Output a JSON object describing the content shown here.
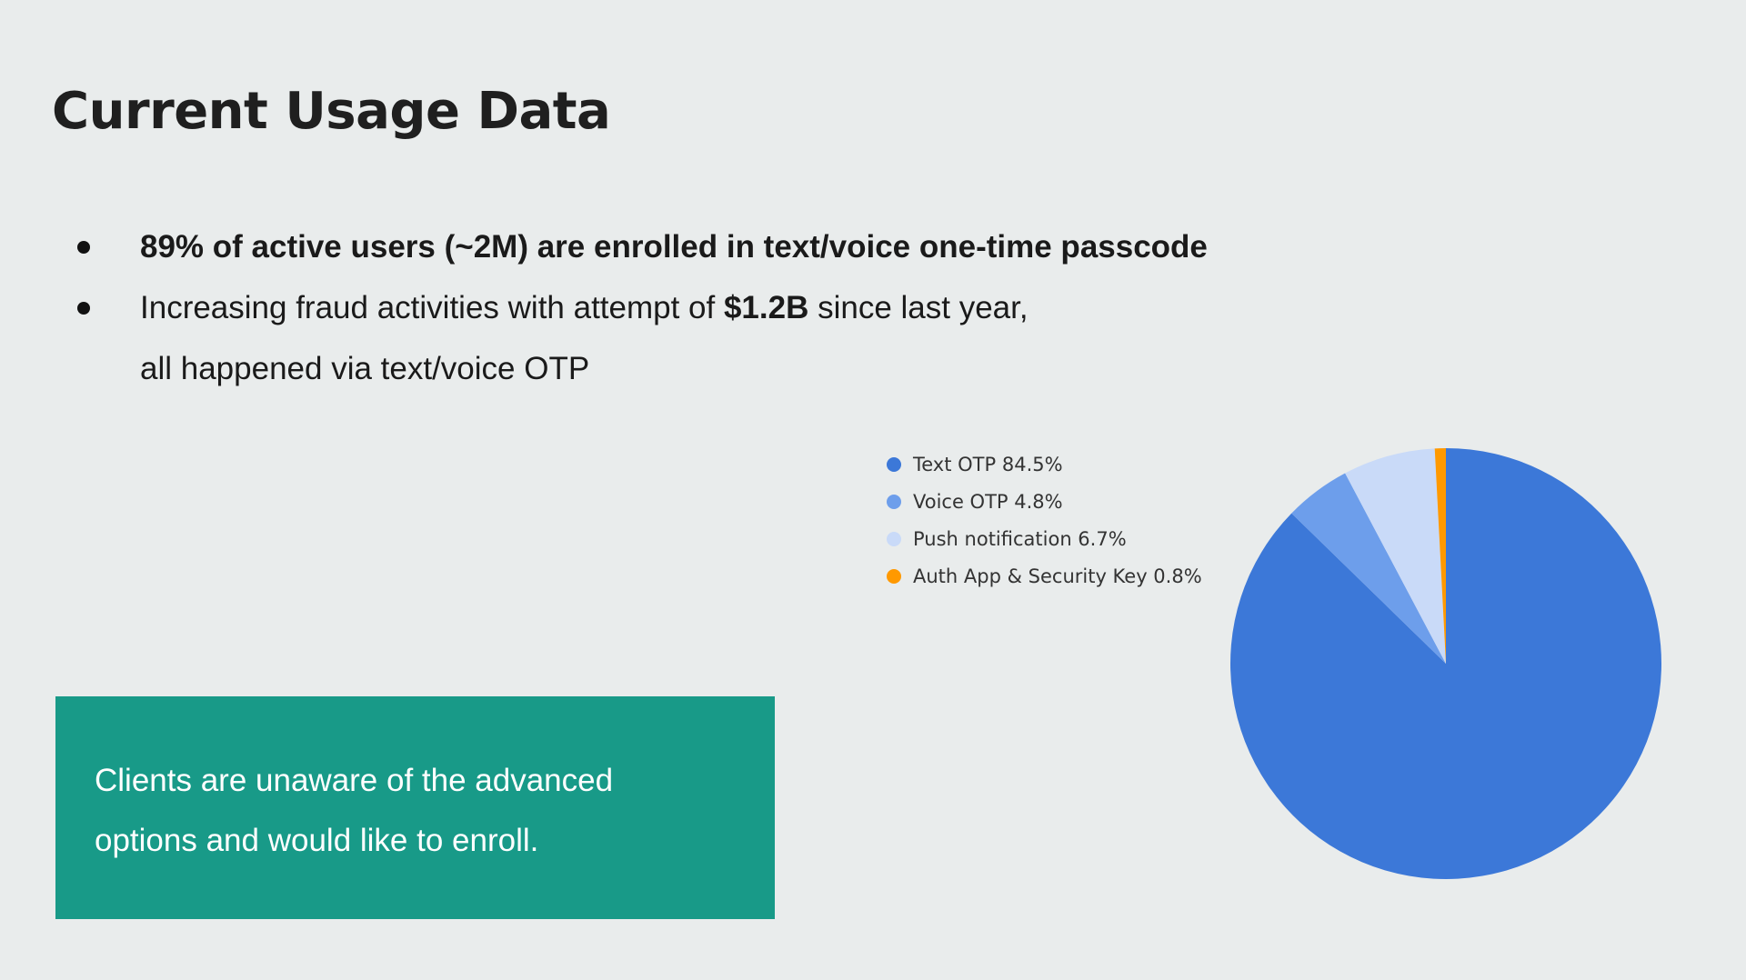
{
  "slide": {
    "title": "Current Usage Data",
    "bullets": [
      {
        "bold": "89% of active users (~2M) are enrolled in text/voice one-time passcode"
      },
      {
        "before": "Increasing fraud activities with attempt of ",
        "bold": "$1.2B",
        "after": " since last year,",
        "line2": "all happened via text/voice OTP"
      }
    ],
    "callout": {
      "text": "Clients are unaware of the advanced options and would like to enroll.",
      "color": "#189a88"
    }
  },
  "chart_data": {
    "type": "pie",
    "title": "",
    "legend_position": "left",
    "categories": [
      "Text OTP",
      "Voice OTP",
      "Push notification",
      "Auth App & Security Key"
    ],
    "values": [
      84.5,
      4.8,
      6.7,
      0.8
    ],
    "legend_labels": [
      "Text OTP 84.5%",
      "Voice OTP 4.8%",
      "Push notification 6.7%",
      "Auth App & Security Key 0.8%"
    ],
    "colors": [
      "#3c78d8",
      "#6d9eeb",
      "#c9daf8",
      "#ff9900"
    ]
  }
}
